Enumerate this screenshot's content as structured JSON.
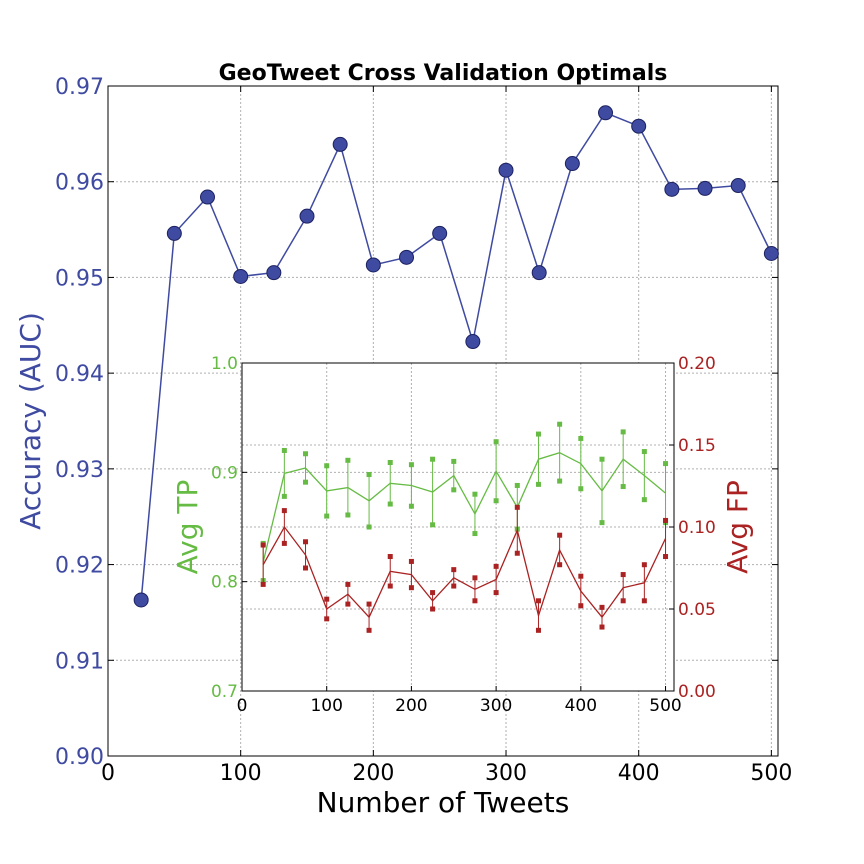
{
  "chart_data": [
    {
      "type": "line",
      "title": "GeoTweet Cross Validation Optimals",
      "xlabel": "Number of Tweets",
      "ylabel": "Accuracy (AUC)",
      "xlim": [
        0,
        505
      ],
      "ylim": [
        0.9,
        0.97
      ],
      "grid": true,
      "xticks": [
        "0",
        "100",
        "200",
        "300",
        "400",
        "500"
      ],
      "yticks": [
        "0.90",
        "0.91",
        "0.92",
        "0.93",
        "0.94",
        "0.95",
        "0.96",
        "0.97"
      ],
      "series": [
        {
          "name": "Accuracy (AUC)",
          "color": "#3f4aa1",
          "x": [
            25,
            50,
            75,
            100,
            125,
            150,
            175,
            200,
            225,
            250,
            275,
            300,
            325,
            350,
            375,
            400,
            425,
            450,
            475,
            500
          ],
          "y": [
            0.9163,
            0.9546,
            0.9584,
            0.9501,
            0.9505,
            0.9564,
            0.9639,
            0.9513,
            0.9521,
            0.9546,
            0.9433,
            0.9612,
            0.9505,
            0.9619,
            0.9672,
            0.9658,
            0.9592,
            0.9593,
            0.9596,
            0.9525
          ]
        }
      ]
    },
    {
      "type": "line",
      "title": "",
      "xlabel": "",
      "ylabel": "Avg TP",
      "y2label": "Avg FP",
      "xlim": [
        0,
        510
      ],
      "ylim": [
        0.7,
        1.0
      ],
      "y2lim": [
        0.0,
        0.2
      ],
      "grid": true,
      "xticks": [
        "0",
        "100",
        "200",
        "300",
        "400",
        "500"
      ],
      "yticks": [
        "0.7",
        "0.8",
        "0.9",
        "1.0"
      ],
      "y2ticks": [
        "0.00",
        "0.05",
        "0.10",
        "0.15",
        "0.20"
      ],
      "series": [
        {
          "name": "Avg TP",
          "axis": "left",
          "color": "#66bb44",
          "x": [
            25,
            50,
            75,
            100,
            125,
            150,
            175,
            200,
            225,
            250,
            275,
            300,
            325,
            350,
            375,
            400,
            425,
            450,
            475,
            500
          ],
          "y": [
            0.818,
            0.899,
            0.904,
            0.883,
            0.886,
            0.874,
            0.89,
            0.888,
            0.882,
            0.897,
            0.862,
            0.901,
            0.868,
            0.912,
            0.918,
            0.908,
            0.883,
            0.912,
            0.897,
            0.881
          ],
          "err": [
            0.017,
            0.021,
            0.013,
            0.023,
            0.025,
            0.024,
            0.019,
            0.019,
            0.03,
            0.013,
            0.018,
            0.027,
            0.02,
            0.023,
            0.026,
            0.023,
            0.029,
            0.025,
            0.022,
            0.027
          ]
        },
        {
          "name": "Avg FP",
          "axis": "right",
          "color": "#aa2222",
          "x": [
            25,
            50,
            75,
            100,
            125,
            150,
            175,
            200,
            225,
            250,
            275,
            300,
            325,
            350,
            375,
            400,
            425,
            450,
            475,
            500
          ],
          "y": [
            0.077,
            0.1,
            0.083,
            0.05,
            0.059,
            0.045,
            0.073,
            0.071,
            0.055,
            0.069,
            0.062,
            0.068,
            0.098,
            0.046,
            0.086,
            0.061,
            0.045,
            0.063,
            0.066,
            0.093
          ],
          "err": [
            0.012,
            0.01,
            0.008,
            0.006,
            0.006,
            0.008,
            0.009,
            0.008,
            0.005,
            0.005,
            0.007,
            0.008,
            0.014,
            0.009,
            0.009,
            0.009,
            0.006,
            0.008,
            0.011,
            0.011
          ]
        }
      ]
    }
  ]
}
